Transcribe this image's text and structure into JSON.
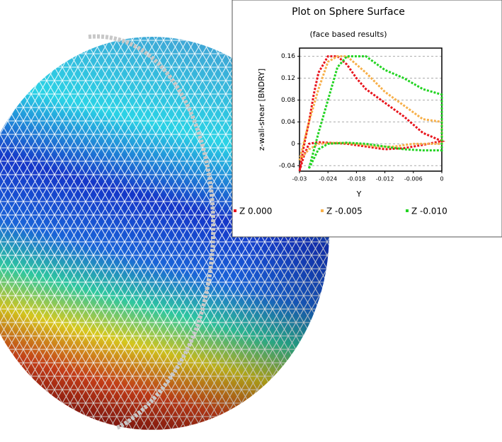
{
  "chart_data": {
    "type": "line",
    "title": "Plot on Sphere Surface",
    "subtitle": "(face based results)",
    "x_label": "Y",
    "y_label": "z-wall-shear [BNDRY]",
    "xlim": [
      -0.03,
      0
    ],
    "ylim": [
      -0.05,
      0.175
    ],
    "xticks": [
      -0.03,
      -0.024,
      -0.018,
      -0.012,
      -0.006,
      0
    ],
    "yticks": [
      0.16,
      0.12,
      0.08,
      0.04,
      0,
      -0.04
    ],
    "grid": true,
    "legend": "bottom",
    "series": [
      {
        "name": "Z 0.000",
        "color": "#e8141c",
        "x": [
          -0.03,
          -0.029,
          -0.028,
          -0.026,
          -0.024,
          -0.02,
          -0.016,
          -0.012,
          -0.008,
          -0.004,
          0,
          0,
          -0.004,
          -0.008,
          -0.012,
          -0.016,
          -0.018,
          -0.02,
          -0.022,
          -0.024,
          -0.026,
          -0.027,
          -0.028,
          -0.029,
          -0.03
        ],
        "values": [
          -0.05,
          -0.02,
          0,
          0.003,
          0.002,
          0,
          -0.005,
          -0.01,
          -0.008,
          -0.002,
          0.005,
          0.005,
          0.02,
          0.05,
          0.075,
          0.1,
          0.12,
          0.145,
          0.16,
          0.16,
          0.13,
          0.09,
          0.04,
          0,
          -0.05
        ]
      },
      {
        "name": "Z -0.005",
        "color": "#f7b04a",
        "x": [
          -0.03,
          -0.028,
          -0.026,
          -0.022,
          -0.018,
          -0.014,
          -0.01,
          -0.006,
          0,
          0,
          -0.004,
          -0.008,
          -0.012,
          -0.016,
          -0.02,
          -0.022,
          -0.024,
          -0.026,
          -0.028,
          -0.03
        ],
        "values": [
          -0.03,
          -0.01,
          0,
          0.002,
          0,
          -0.005,
          -0.005,
          0,
          0,
          0.04,
          0.045,
          0.07,
          0.095,
          0.13,
          0.16,
          0.16,
          0.15,
          0.1,
          0.04,
          -0.03
        ]
      },
      {
        "name": "Z -0.010",
        "color": "#22d422",
        "x": [
          -0.028,
          -0.026,
          -0.024,
          -0.02,
          -0.016,
          -0.012,
          -0.008,
          -0.004,
          0,
          0,
          -0.004,
          -0.008,
          -0.012,
          -0.016,
          -0.02,
          -0.022,
          -0.024,
          -0.026,
          -0.028
        ],
        "values": [
          -0.045,
          -0.01,
          0,
          0.002,
          0,
          -0.005,
          -0.01,
          -0.012,
          -0.012,
          0.09,
          0.1,
          0.12,
          0.135,
          0.16,
          0.16,
          0.14,
          0.08,
          0.02,
          -0.045
        ]
      }
    ]
  }
}
